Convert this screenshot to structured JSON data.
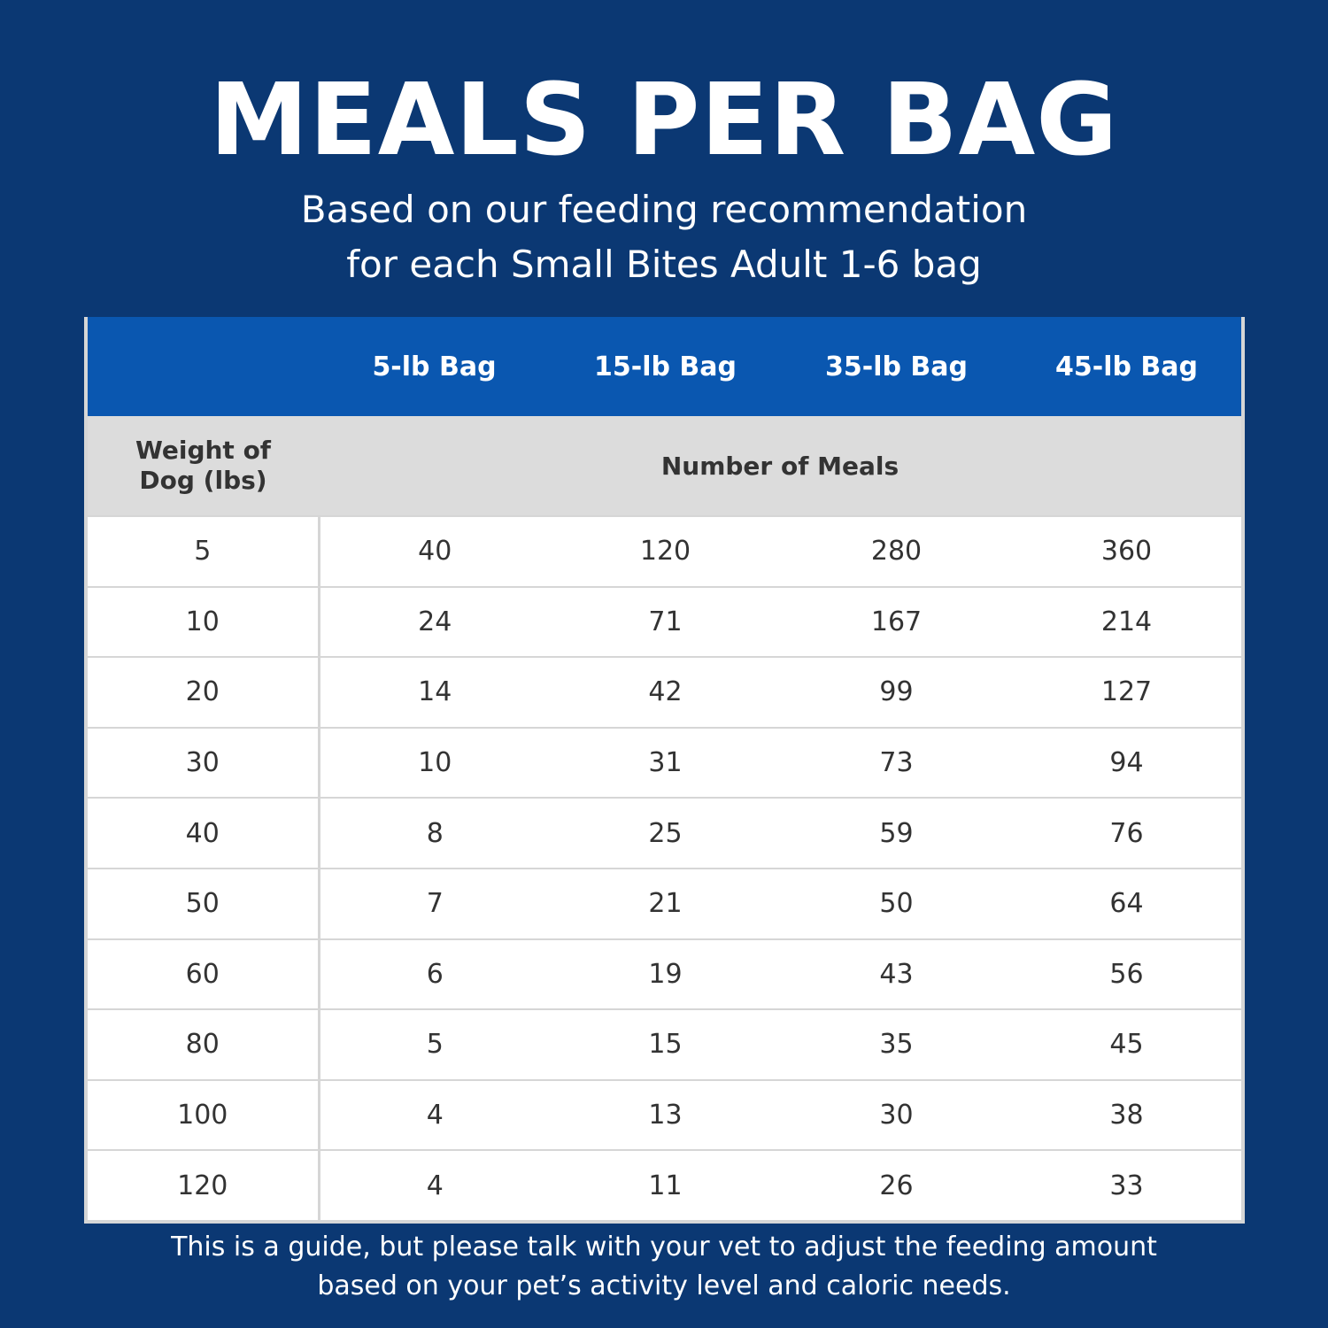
{
  "header": {
    "title": "MEALS PER BAG",
    "subtitle": [
      "Based on our feeding recommendation",
      "for each Small Bites Adult 1-6 bag"
    ]
  },
  "table": {
    "columns": [
      "5-lb Bag",
      "15-lb Bag",
      "35-lb Bag",
      "45-lb Bag"
    ],
    "row_header": "Weight of Dog (lbs)",
    "group_header": "Number of Meals",
    "rows": [
      [
        5,
        40,
        120,
        280,
        360
      ],
      [
        10,
        24,
        71,
        167,
        214
      ],
      [
        20,
        14,
        42,
        99,
        127
      ],
      [
        30,
        10,
        31,
        73,
        94
      ],
      [
        40,
        8,
        25,
        59,
        76
      ],
      [
        50,
        7,
        21,
        50,
        64
      ],
      [
        60,
        6,
        19,
        43,
        56
      ],
      [
        80,
        5,
        15,
        35,
        45
      ],
      [
        100,
        4,
        13,
        30,
        38
      ],
      [
        120,
        4,
        11,
        26,
        33
      ]
    ]
  },
  "footer": [
    "This is a guide, but please talk with your vet to adjust the feeding amount",
    "based on your pet’s activity level and caloric needs."
  ]
}
